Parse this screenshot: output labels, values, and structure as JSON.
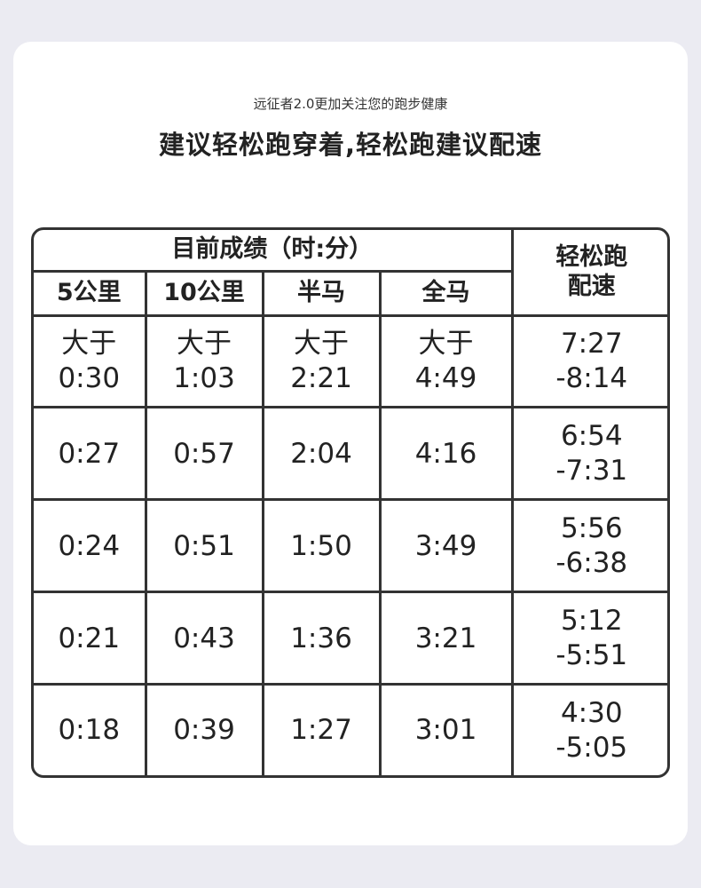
{
  "subtitle": "远征者2.0更加关注您的跑步健康",
  "title": "建议轻松跑穿着,轻松跑建议配速",
  "table": {
    "group_header": "目前成绩（时:分）",
    "pace_header": [
      "轻松跑",
      "配速"
    ],
    "columns": [
      "5公里",
      "10公里",
      "半马",
      "全马"
    ],
    "rows": [
      {
        "cells": [
          [
            "大于",
            "0:30"
          ],
          [
            "大于",
            "1:03"
          ],
          [
            "大于",
            "2:21"
          ],
          [
            "大于",
            "4:49"
          ]
        ],
        "pace": [
          "7:27",
          "-8:14"
        ]
      },
      {
        "cells": [
          [
            "0:27"
          ],
          [
            "0:57"
          ],
          [
            "2:04"
          ],
          [
            "4:16"
          ]
        ],
        "pace": [
          "6:54",
          "-7:31"
        ]
      },
      {
        "cells": [
          [
            "0:24"
          ],
          [
            "0:51"
          ],
          [
            "1:50"
          ],
          [
            "3:49"
          ]
        ],
        "pace": [
          "5:56",
          "-6:38"
        ]
      },
      {
        "cells": [
          [
            "0:21"
          ],
          [
            "0:43"
          ],
          [
            "1:36"
          ],
          [
            "3:21"
          ]
        ],
        "pace": [
          "5:12",
          "-5:51"
        ]
      },
      {
        "cells": [
          [
            "0:18"
          ],
          [
            "0:39"
          ],
          [
            "1:27"
          ],
          [
            "3:01"
          ]
        ],
        "pace": [
          "4:30",
          "-5:05"
        ]
      }
    ]
  }
}
